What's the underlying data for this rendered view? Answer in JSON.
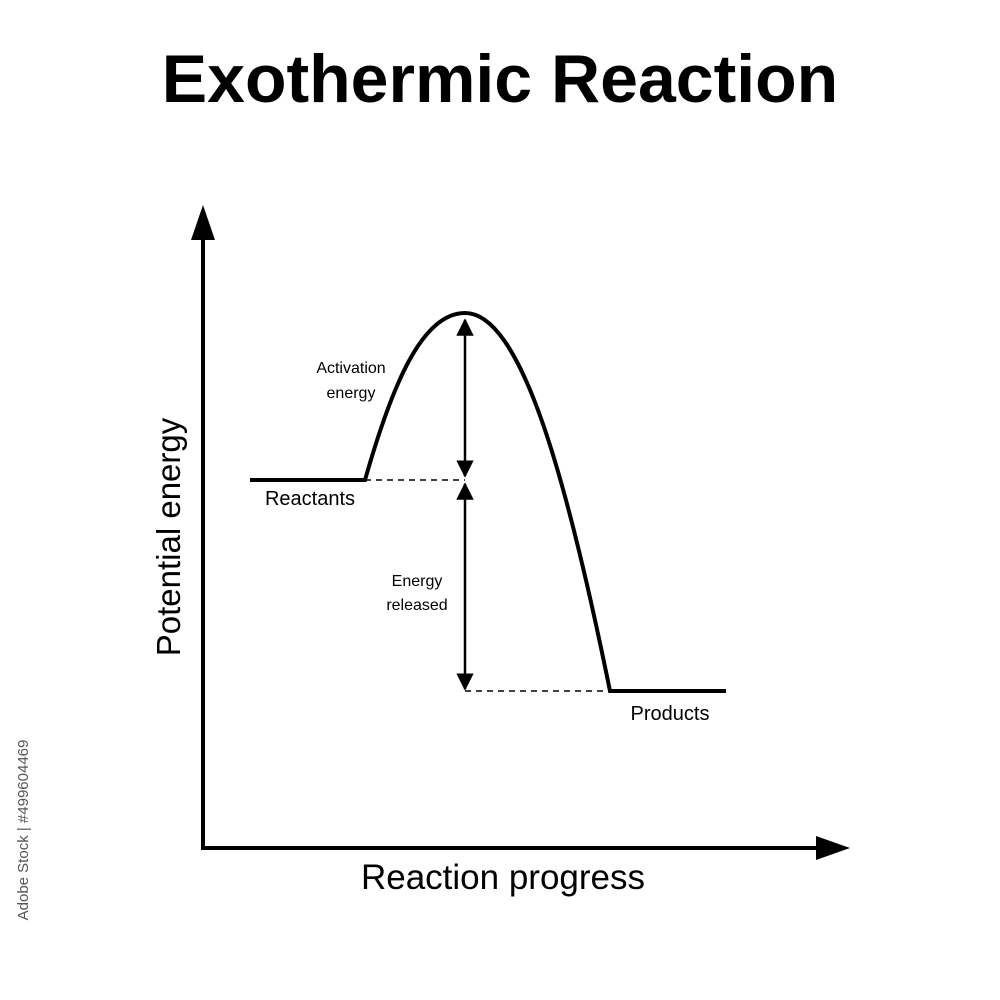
{
  "header": {
    "title": "Exothermic Reaction"
  },
  "axes": {
    "y_label": "Potential energy",
    "x_label": "Reaction progress"
  },
  "annotations": {
    "activation_energy": [
      "Activation",
      "energy"
    ],
    "energy_released": [
      "Energy",
      "released"
    ]
  },
  "states": {
    "reactants": "Reactants",
    "products": "Products"
  },
  "watermark": "Adobe Stock | #499604469"
}
